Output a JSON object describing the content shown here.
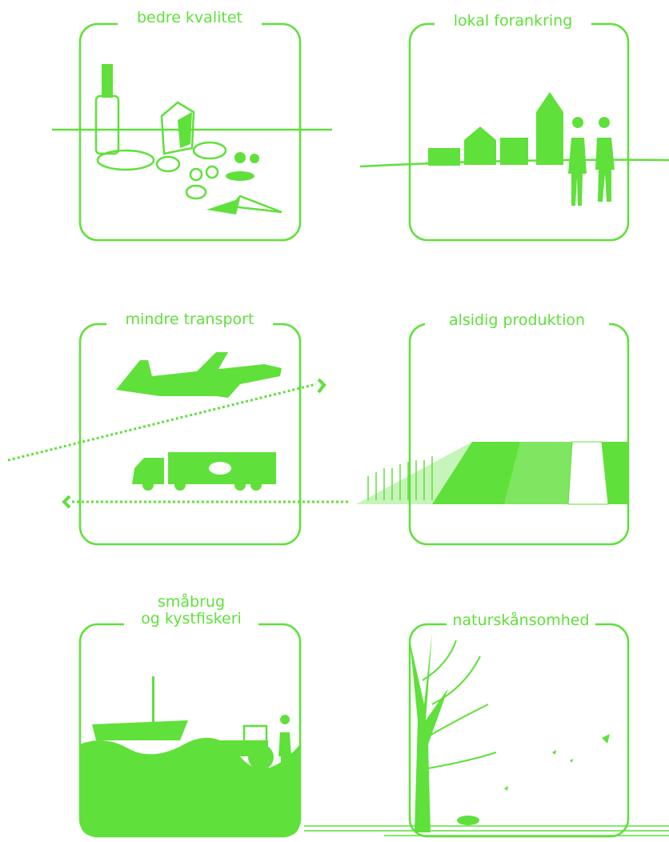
{
  "panels": [
    {
      "title": "bedre kvalitet"
    },
    {
      "title": "lokal forankring"
    },
    {
      "title": "mindre transport"
    },
    {
      "title": "alsidig produktion"
    },
    {
      "title": [
        "småbrug",
        "og kystfiskeri"
      ]
    },
    {
      "title": "naturskånsomhed"
    }
  ]
}
